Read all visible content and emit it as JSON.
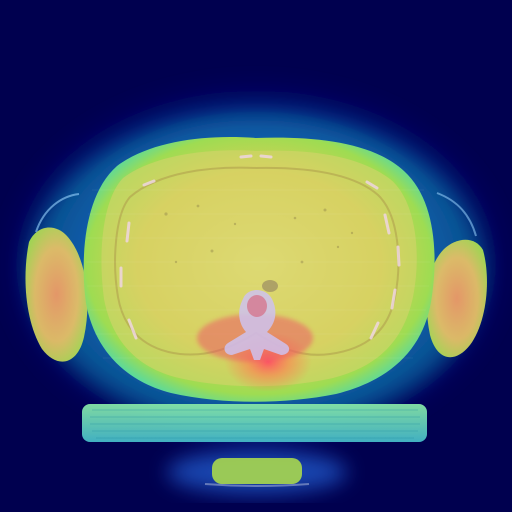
{
  "image": {
    "kind": "axial CT slice with heatmap overlay",
    "overlay_colormap": "jet",
    "colors": {
      "background": "#00004f",
      "outer_glow": "#2b6bff",
      "mid_band": "#17d6c8",
      "body": "#c9c84e",
      "body_light": "#dedb73",
      "hot": "#e8505c",
      "bone": "#cfc6ee"
    },
    "regions": [
      {
        "name": "thorax-body"
      },
      {
        "name": "left-arm"
      },
      {
        "name": "right-arm"
      },
      {
        "name": "spine-vertebra"
      },
      {
        "name": "ct-table"
      },
      {
        "name": "table-support"
      }
    ]
  }
}
